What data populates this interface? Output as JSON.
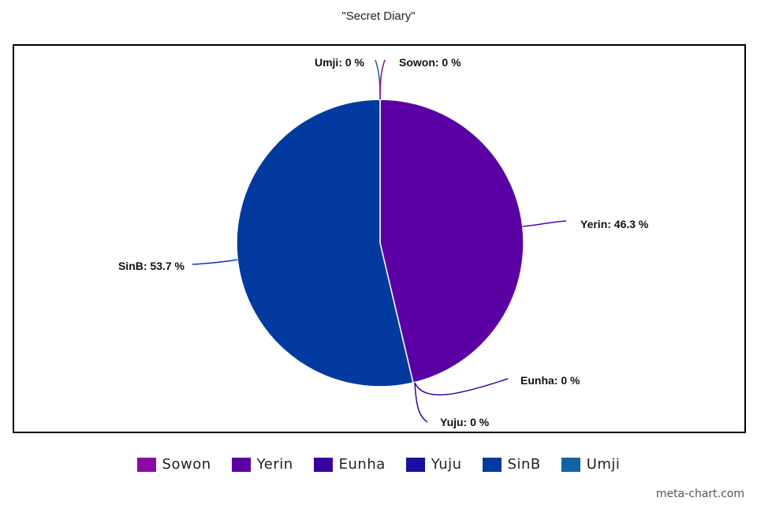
{
  "chart_data": {
    "type": "pie",
    "title": "\"Secret Diary\"",
    "categories": [
      "Sowon",
      "Yerin",
      "Eunha",
      "Yuju",
      "SinB",
      "Umji"
    ],
    "values": [
      0,
      46.3,
      0,
      0,
      53.7,
      0
    ],
    "value_suffix": " %",
    "colors": [
      "#8B0AA5",
      "#5B00A5",
      "#3A009E",
      "#1B0FA0",
      "#023A9F",
      "#0F64A1"
    ],
    "labels": [
      {
        "category": "Umji",
        "text": "Umji: 0 %"
      },
      {
        "category": "Sowon",
        "text": "Sowon: 0 %"
      },
      {
        "category": "Yerin",
        "text": "Yerin: 46.3 %"
      },
      {
        "category": "SinB",
        "text": "SinB: 53.7 %"
      },
      {
        "category": "Eunha",
        "text": "Eunha: 0 %"
      },
      {
        "category": "Yuju",
        "text": "Yuju: 0 %"
      }
    ],
    "legend": {
      "placement": "bottom",
      "items": [
        "Sowon",
        "Yerin",
        "Eunha",
        "Yuju",
        "SinB",
        "Umji"
      ]
    }
  },
  "watermark": "meta-chart.com"
}
